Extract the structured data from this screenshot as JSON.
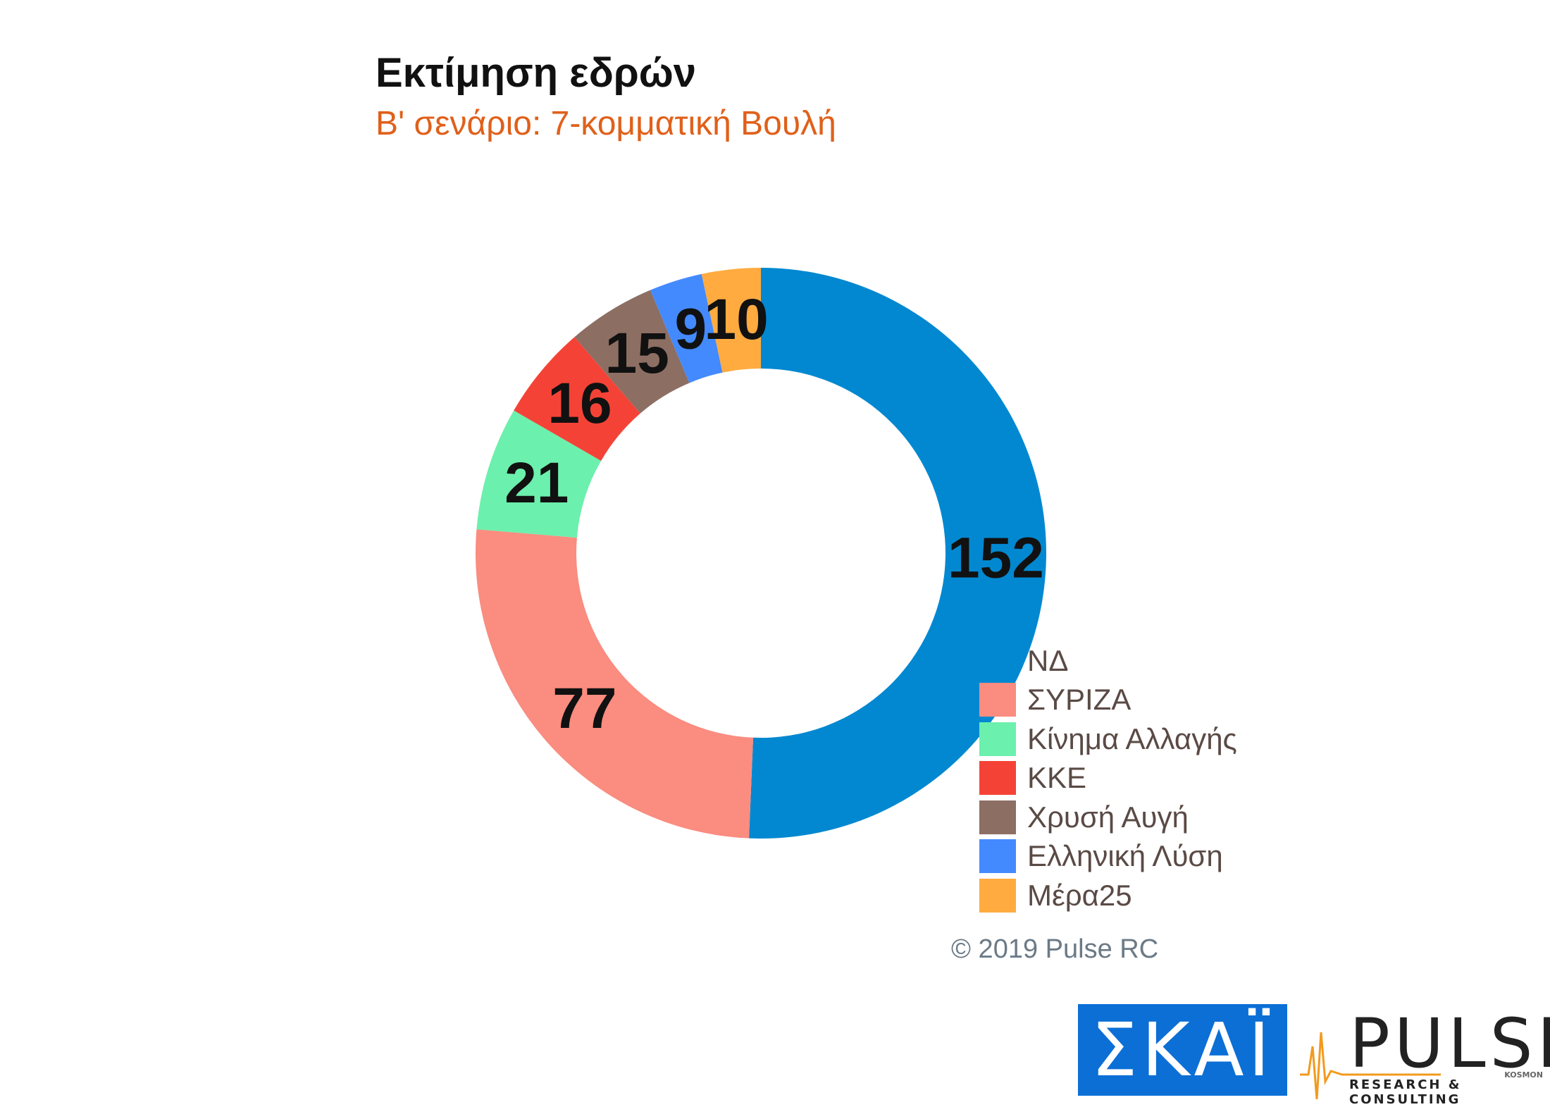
{
  "chart_data": {
    "type": "pie",
    "title": "Εκτίμηση εδρών",
    "subtitle": "Β' σενάριο: 7-κομματική Βουλή",
    "categories": [
      "ΝΔ",
      "ΣΥΡΙΖΑ",
      "Κίνημα Αλλαγής",
      "ΚΚΕ",
      "Χρυσή Αυγή",
      "Ελληνική Λύση",
      "Μέρα25"
    ],
    "values": [
      152,
      77,
      21,
      16,
      15,
      9,
      10
    ],
    "labels": [
      "152",
      "77",
      "21",
      "16",
      "15",
      "9",
      "10"
    ],
    "colors": [
      "#0288d1",
      "#fa8c80",
      "#6cf0ad",
      "#f44336",
      "#8d6e63",
      "#448aff",
      "#ffab40"
    ],
    "donut": true,
    "legend": "bottom-right"
  },
  "copyright": "© 2019 Pulse RC",
  "logos": {
    "skai": "ΣΚΑΪ",
    "pulse": "PULSE",
    "pulse_sub": "RESEARCH & CONSULTING",
    "pulse_kosmon": "KOSMON"
  }
}
